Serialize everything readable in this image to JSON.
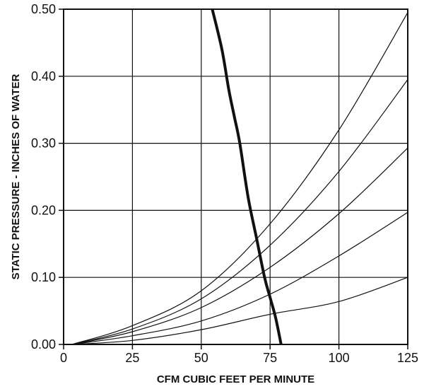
{
  "chart_data": {
    "type": "line",
    "title": "",
    "xlabel": "CFM CUBIC FEET PER MINUTE",
    "ylabel": "STATIC PRESSURE - INCHES OF WATER",
    "xlim": [
      0,
      125
    ],
    "ylim": [
      0,
      0.5
    ],
    "x_ticks": [
      0,
      25,
      50,
      75,
      100,
      125
    ],
    "x_tick_labels": [
      "0",
      "25",
      "50",
      "75",
      "100",
      "125"
    ],
    "y_ticks": [
      0,
      0.1,
      0.2,
      0.3,
      0.4,
      0.5
    ],
    "y_tick_labels": [
      "0.00",
      "0.10",
      "0.20",
      "0.30",
      "0.40",
      "0.50"
    ],
    "grid": true,
    "legend": "none",
    "colors": {
      "line": "#111111",
      "grid": "#111111",
      "background": "#ffffff"
    },
    "series": [
      {
        "values": [
          {
            "x": 3,
            "y": 0.0
          },
          {
            "x": 25,
            "y": 0.006
          },
          {
            "x": 50,
            "y": 0.022
          },
          {
            "x": 75,
            "y": 0.045
          },
          {
            "x": 100,
            "y": 0.064
          },
          {
            "x": 125,
            "y": 0.1
          }
        ]
      },
      {
        "values": [
          {
            "x": 3,
            "y": 0.0
          },
          {
            "x": 25,
            "y": 0.013
          },
          {
            "x": 50,
            "y": 0.035
          },
          {
            "x": 75,
            "y": 0.075
          },
          {
            "x": 100,
            "y": 0.132
          },
          {
            "x": 125,
            "y": 0.197
          }
        ]
      },
      {
        "values": [
          {
            "x": 3,
            "y": 0.0
          },
          {
            "x": 25,
            "y": 0.019
          },
          {
            "x": 50,
            "y": 0.055
          },
          {
            "x": 75,
            "y": 0.115
          },
          {
            "x": 100,
            "y": 0.195
          },
          {
            "x": 125,
            "y": 0.293
          }
        ]
      },
      {
        "values": [
          {
            "x": 3,
            "y": 0.0
          },
          {
            "x": 25,
            "y": 0.023
          },
          {
            "x": 50,
            "y": 0.068
          },
          {
            "x": 75,
            "y": 0.148
          },
          {
            "x": 100,
            "y": 0.258
          },
          {
            "x": 125,
            "y": 0.395
          }
        ]
      },
      {
        "values": [
          {
            "x": 3,
            "y": 0.0
          },
          {
            "x": 25,
            "y": 0.028
          },
          {
            "x": 50,
            "y": 0.08
          },
          {
            "x": 75,
            "y": 0.18
          },
          {
            "x": 100,
            "y": 0.32
          },
          {
            "x": 125,
            "y": 0.495
          }
        ]
      },
      {
        "bold": true,
        "values": [
          {
            "x": 54,
            "y": 0.5
          },
          {
            "x": 57.5,
            "y": 0.44
          },
          {
            "x": 60,
            "y": 0.38
          },
          {
            "x": 62,
            "y": 0.34
          },
          {
            "x": 64,
            "y": 0.3
          },
          {
            "x": 67,
            "y": 0.22
          },
          {
            "x": 70,
            "y": 0.16
          },
          {
            "x": 73,
            "y": 0.1
          },
          {
            "x": 75,
            "y": 0.07
          },
          {
            "x": 77,
            "y": 0.04
          },
          {
            "x": 79,
            "y": 0.0
          }
        ]
      }
    ]
  }
}
